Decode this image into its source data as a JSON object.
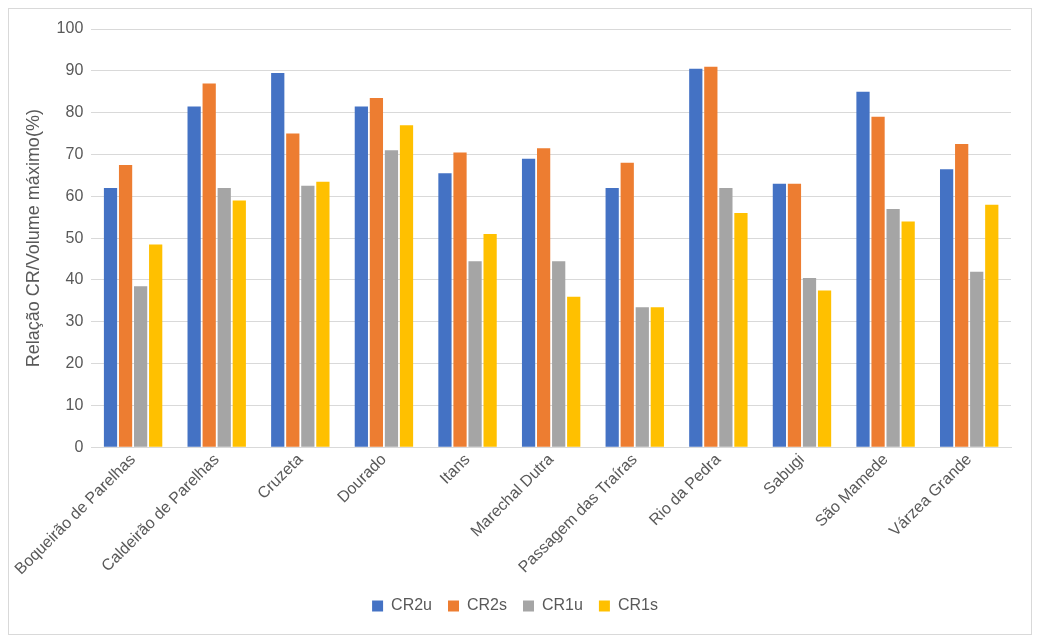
{
  "chart_data": {
    "type": "bar",
    "ylabel": "Relação CR/Volume máximo(%)",
    "categories": [
      "Boqueirão de Parelhas",
      "Caldeirão de Parelhas",
      "Cruzeta",
      "Dourado",
      "Itans",
      "Marechal Dutra",
      "Passagem das Traíras",
      "Rio da Pedra",
      "Sabugi",
      "São Mamede",
      "Várzea Grande"
    ],
    "series": [
      {
        "name": "CR2u",
        "color": "#4472c4",
        "values": [
          62,
          81.5,
          89.5,
          81.5,
          65.5,
          69,
          62,
          90.5,
          63,
          85,
          66.5
        ]
      },
      {
        "name": "CR2s",
        "color": "#ed7d31",
        "values": [
          67.5,
          87,
          75,
          83.5,
          70.5,
          71.5,
          68,
          91,
          63,
          79,
          72.5
        ]
      },
      {
        "name": "CR1u",
        "color": "#a5a5a5",
        "values": [
          38.5,
          62,
          62.5,
          71,
          44.5,
          44.5,
          33.5,
          62,
          40.5,
          57,
          42
        ]
      },
      {
        "name": "CR1s",
        "color": "#ffc000",
        "values": [
          48.5,
          59,
          63.5,
          77,
          51,
          36,
          33.5,
          56,
          37.5,
          54,
          58
        ]
      }
    ],
    "ylim": [
      0,
      100
    ],
    "yticks": [
      0,
      10,
      20,
      30,
      40,
      50,
      60,
      70,
      80,
      90,
      100
    ],
    "grid": "y",
    "legend": "bottom"
  }
}
